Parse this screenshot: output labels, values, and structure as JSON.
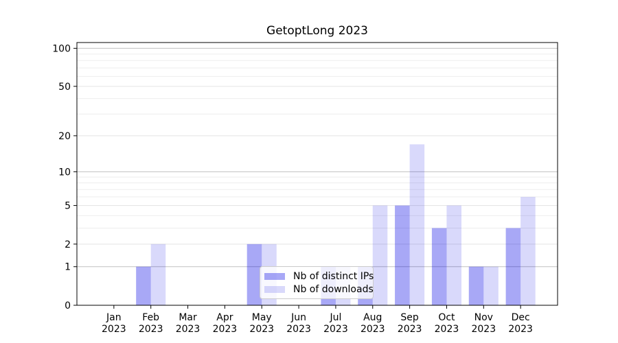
{
  "chart_data": {
    "type": "bar",
    "title": "GetoptLong 2023",
    "categories": [
      "Jan",
      "Feb",
      "Mar",
      "Apr",
      "May",
      "Jun",
      "Jul",
      "Aug",
      "Sep",
      "Oct",
      "Nov",
      "Dec"
    ],
    "year_label": "2023",
    "series": [
      {
        "name": "Nb of distinct IPs",
        "color": "rgba(0,0,230,0.34)",
        "values": [
          0,
          1,
          0,
          0,
          2,
          0,
          1,
          1,
          5,
          3,
          1,
          3
        ]
      },
      {
        "name": "Nb of downloads",
        "color": "rgba(0,0,230,0.15)",
        "values": [
          0,
          2,
          0,
          0,
          2,
          0,
          1,
          5,
          17,
          5,
          1,
          6
        ]
      }
    ],
    "yscale": "log1p",
    "ylim": [
      0,
      111
    ],
    "yticks": [
      0,
      1,
      2,
      5,
      10,
      20,
      50,
      100
    ],
    "grid": {
      "major_lines": [
        1,
        10,
        100
      ],
      "mid_lines": [
        2,
        5,
        20,
        50
      ],
      "minor_lines": [
        3,
        4,
        6,
        7,
        8,
        9,
        30,
        40,
        60,
        70,
        80,
        90
      ],
      "major_color": "#c0c0c0",
      "mid_color": "#e3e3e3",
      "minor_color": "#ededed"
    },
    "legend_position": "lower center",
    "background_color": "#ffffff",
    "spine_color": "#000000"
  }
}
